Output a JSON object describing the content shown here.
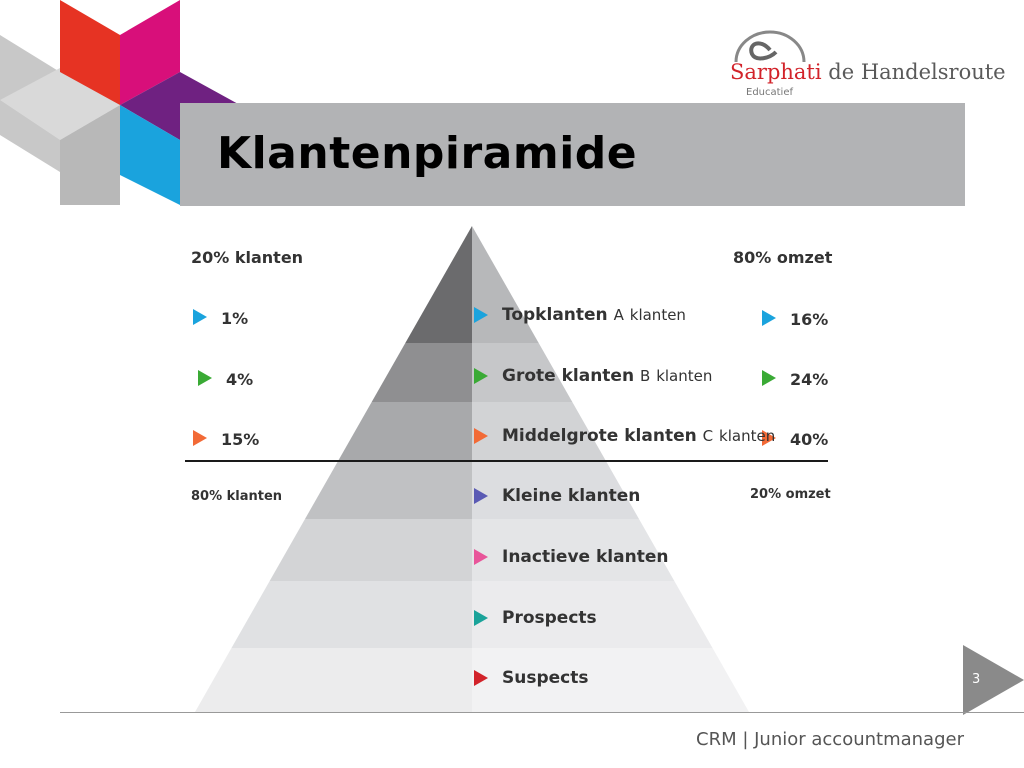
{
  "slide": {
    "title": "Klantenpiramide",
    "page_number": "3",
    "footer": "CRM | Junior accountmanager"
  },
  "logo": {
    "brand": "Sarphati",
    "rest": " de Handelsroute",
    "sub": "Educatief"
  },
  "left": {
    "header": "20% klanten",
    "header_bottom": "80% klanten",
    "items": [
      {
        "value": "1%",
        "color": "#1aa3dd"
      },
      {
        "value": "4%",
        "color": "#3aaa35"
      },
      {
        "value": "15%",
        "color": "#f26a36"
      }
    ]
  },
  "right": {
    "header": "80% omzet",
    "header_bottom": "20% omzet",
    "items": [
      {
        "value": "16%",
        "color": "#1aa3dd"
      },
      {
        "value": "24%",
        "color": "#3aaa35"
      },
      {
        "value": "40%",
        "color": "#f26a36"
      }
    ]
  },
  "tiers": [
    {
      "label": "Topklanten",
      "suffix_letter": "A",
      "suffix": "klanten",
      "color": "#1aa3dd"
    },
    {
      "label": "Grote klanten",
      "suffix_letter": "B",
      "suffix": "klanten",
      "color": "#3aaa35"
    },
    {
      "label": "Middelgrote klanten",
      "suffix_letter": "C",
      "suffix": "klanten",
      "color": "#f26a36"
    },
    {
      "label": "Kleine klanten",
      "suffix_letter": "",
      "suffix": "",
      "color": "#5a5ab4"
    },
    {
      "label": "Inactieve klanten",
      "suffix_letter": "",
      "suffix": "",
      "color": "#e8559a"
    },
    {
      "label": "Prospects",
      "suffix_letter": "",
      "suffix": "",
      "color": "#1aa39a"
    },
    {
      "label": "Suspects",
      "suffix_letter": "",
      "suffix": "",
      "color": "#d2232a"
    }
  ]
}
